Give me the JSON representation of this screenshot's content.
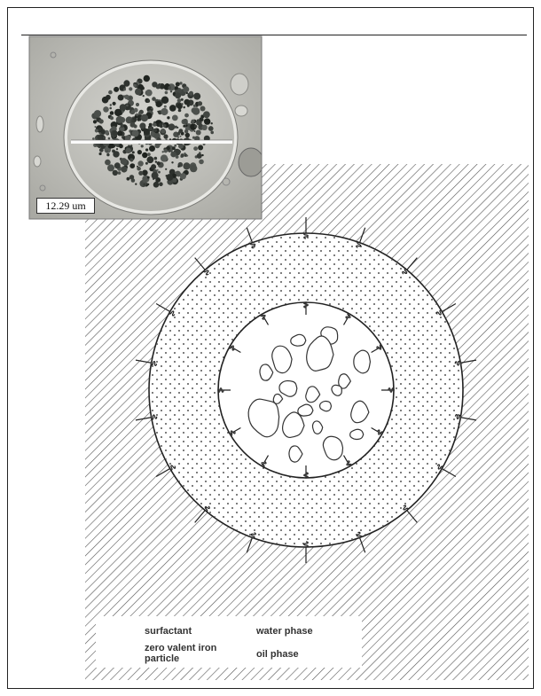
{
  "micrograph": {
    "scale_label": "12.29 um"
  },
  "legend": {
    "surfactant": "surfactant",
    "zero_valent_iron_line1": "zero valent iron",
    "zero_valent_iron_line2": "particle",
    "water_phase": "water phase",
    "oil_phase": "oil phase"
  },
  "colors": {
    "stroke": "#222222",
    "hatch": "#444444",
    "particle_fill": "#ffffff",
    "micrograph_background": "#bdbdb8",
    "iron_cluster": "#2c2f2a"
  },
  "icons": [
    "surfactant-icon",
    "zero-valent-iron-particle-icon",
    "water-phase-icon",
    "oil-phase-icon"
  ]
}
